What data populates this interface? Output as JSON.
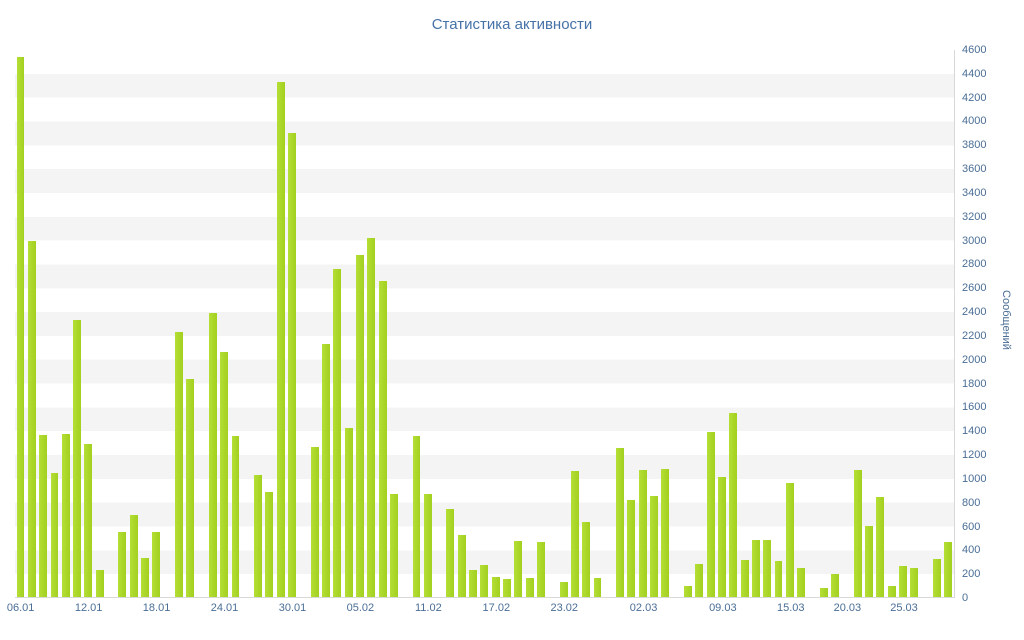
{
  "title": "Статистика активности",
  "chart_data": {
    "type": "bar",
    "title": "Статистика активности",
    "xlabel": "",
    "ylabel": "Сообщений",
    "ylim": [
      0,
      4600
    ],
    "y_tick_step": 200,
    "grid": "striped-horizontal-bands",
    "legend_position": "none",
    "bar_color": "#a6d32b",
    "stripe_color": "#f4f4f4",
    "text_color": "#4a6e96",
    "title_color": "#4572a7",
    "y_ticks": [
      "0",
      "200",
      "400",
      "600",
      "800",
      "1000",
      "1200",
      "1400",
      "1600",
      "1800",
      "2000",
      "2200",
      "2400",
      "2600",
      "2800",
      "3000",
      "3200",
      "3400",
      "3600",
      "3800",
      "4000",
      "4200",
      "4400",
      "4600"
    ],
    "x_labels": [
      {
        "label": "06.01",
        "index": 0
      },
      {
        "label": "12.01",
        "index": 6
      },
      {
        "label": "18.01",
        "index": 12
      },
      {
        "label": "24.01",
        "index": 18
      },
      {
        "label": "30.01",
        "index": 24
      },
      {
        "label": "05.02",
        "index": 30
      },
      {
        "label": "11.02",
        "index": 36
      },
      {
        "label": "17.02",
        "index": 42
      },
      {
        "label": "23.02",
        "index": 48
      },
      {
        "label": "02.03",
        "index": 55
      },
      {
        "label": "09.03",
        "index": 62
      },
      {
        "label": "15.03",
        "index": 68
      },
      {
        "label": "20.03",
        "index": 73
      },
      {
        "label": "25.03",
        "index": 78
      }
    ],
    "values": [
      4540,
      2990,
      1360,
      1040,
      1370,
      2330,
      1290,
      230,
      0,
      550,
      690,
      330,
      550,
      0,
      2230,
      1830,
      0,
      2390,
      2060,
      1350,
      0,
      1030,
      880,
      4330,
      3900,
      0,
      1260,
      2130,
      2760,
      1420,
      2880,
      3020,
      2660,
      870,
      0,
      1350,
      870,
      0,
      740,
      520,
      230,
      270,
      170,
      150,
      470,
      160,
      460,
      0,
      130,
      1060,
      630,
      160,
      0,
      1250,
      820,
      1070,
      850,
      1080,
      0,
      90,
      280,
      1390,
      1010,
      1550,
      310,
      480,
      480,
      300,
      960,
      240,
      0,
      80,
      190,
      0,
      1070,
      600,
      840,
      90,
      260,
      240,
      0,
      320,
      460
    ]
  }
}
